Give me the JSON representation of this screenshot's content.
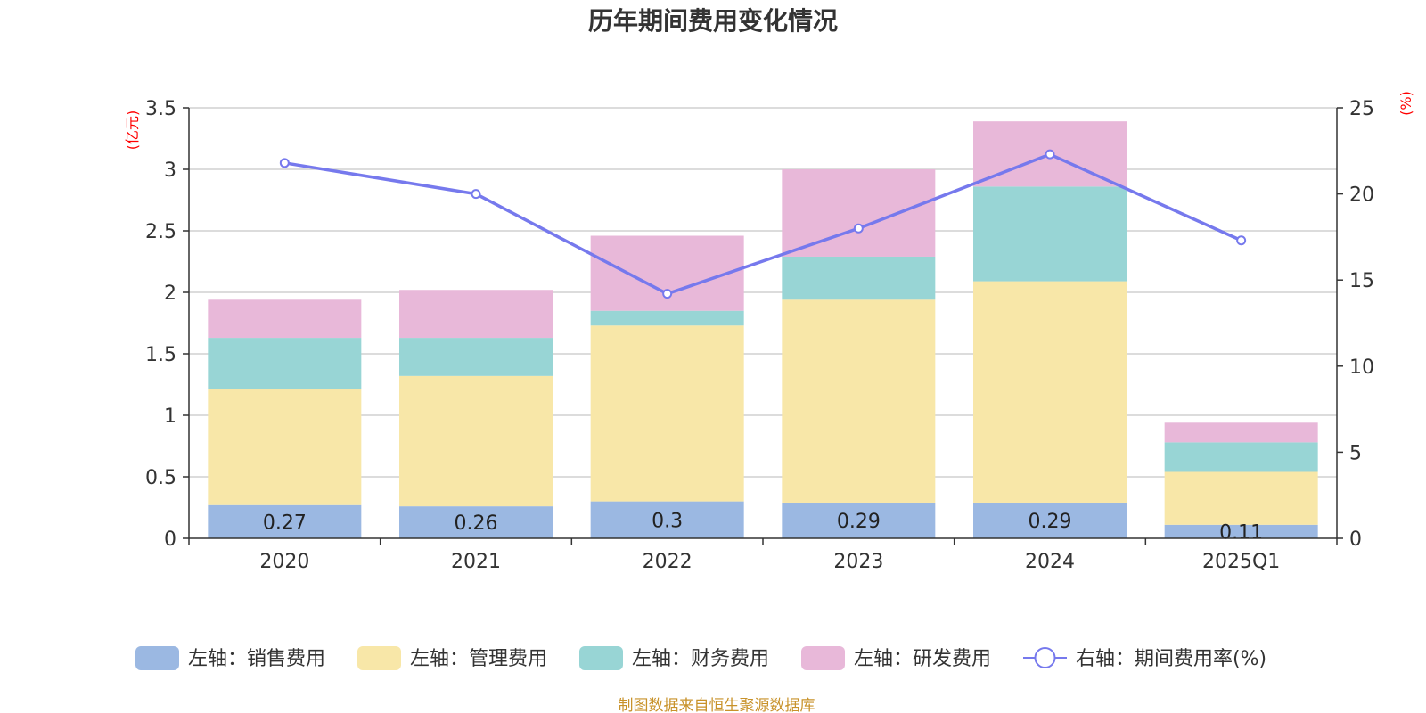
{
  "chart_data": {
    "type": "bar",
    "title": "历年期间费用变化情况",
    "left_axis_unit": "(亿元)",
    "right_axis_unit": "(%)",
    "categories": [
      "2020",
      "2021",
      "2022",
      "2023",
      "2024",
      "2025Q1"
    ],
    "left_ylim": [
      0,
      3.5
    ],
    "left_ticks": [
      "0",
      "0.5",
      "1",
      "1.5",
      "2",
      "2.5",
      "3",
      "3.5"
    ],
    "right_ylim": [
      0,
      25
    ],
    "right_ticks": [
      "0",
      "5",
      "10",
      "15",
      "20",
      "25"
    ],
    "grid": true,
    "legend_position": "bottom",
    "series": [
      {
        "name": "左轴：销售费用",
        "type": "bar",
        "axis": "left",
        "color": "#9bb8e2",
        "values": [
          0.27,
          0.26,
          0.3,
          0.29,
          0.29,
          0.11
        ],
        "labels": [
          "0.27",
          "0.26",
          "0.3",
          "0.29",
          "0.29",
          "0.11"
        ]
      },
      {
        "name": "左轴：管理费用",
        "type": "bar",
        "axis": "left",
        "color": "#f8e7a8",
        "values": [
          0.94,
          1.06,
          1.43,
          1.65,
          1.8,
          0.43
        ]
      },
      {
        "name": "左轴：财务费用",
        "type": "bar",
        "axis": "left",
        "color": "#98d5d5",
        "values": [
          0.42,
          0.31,
          0.12,
          0.35,
          0.77,
          0.24
        ]
      },
      {
        "name": "左轴：研发费用",
        "type": "bar",
        "axis": "left",
        "color": "#e8b8d9",
        "values": [
          0.31,
          0.39,
          0.61,
          0.71,
          0.53,
          0.16
        ]
      },
      {
        "name": "右轴：期间费用率(%)",
        "type": "line",
        "axis": "right",
        "color": "#7679ed",
        "values": [
          21.8,
          20.0,
          14.2,
          18.0,
          22.3,
          17.3
        ]
      }
    ]
  },
  "source_note": "制图数据来自恒生聚源数据库"
}
